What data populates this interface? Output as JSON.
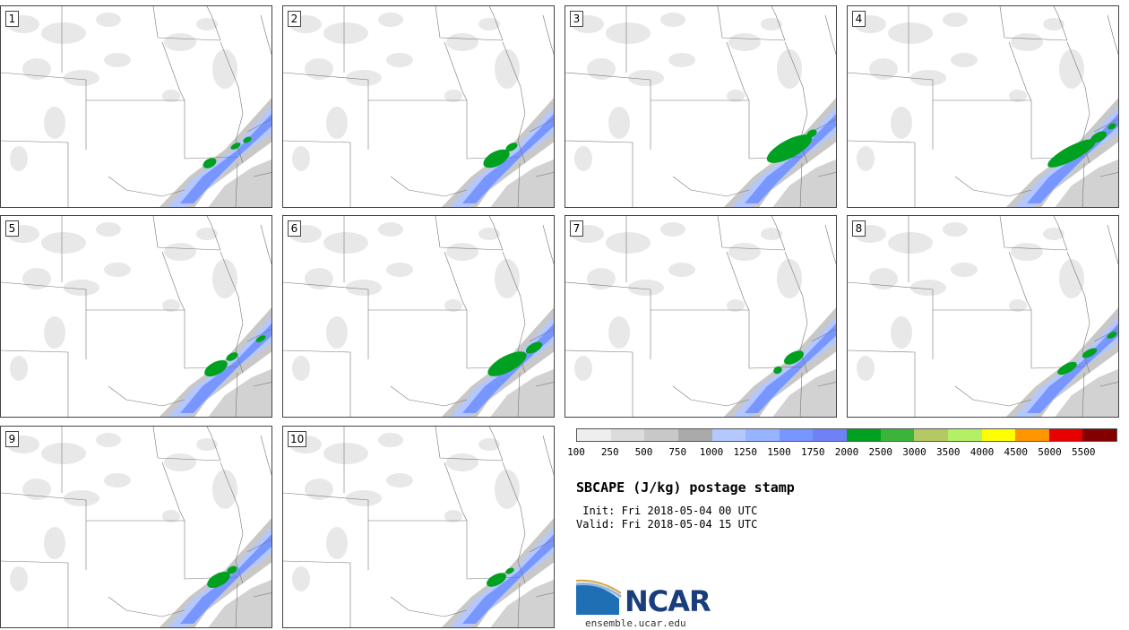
{
  "panels": [
    {
      "label": "1"
    },
    {
      "label": "2"
    },
    {
      "label": "3"
    },
    {
      "label": "4"
    },
    {
      "label": "5"
    },
    {
      "label": "6"
    },
    {
      "label": "7"
    },
    {
      "label": "8"
    },
    {
      "label": "9"
    },
    {
      "label": "10"
    }
  ],
  "colorbar": {
    "colors": [
      "#eeeeee",
      "#dcdcdc",
      "#c8c8c8",
      "#aaaaaa",
      "#b4c8ff",
      "#96b4ff",
      "#7896ff",
      "#6e82f5",
      "#00a020",
      "#3cb43c",
      "#b4c864",
      "#b4f064",
      "#ffff00",
      "#ff9600",
      "#e60000",
      "#820000"
    ],
    "ticks": [
      "100",
      "250",
      "500",
      "750",
      "1000",
      "1250",
      "1500",
      "1750",
      "2000",
      "2500",
      "3000",
      "3500",
      "4000",
      "4500",
      "5000",
      "5500"
    ]
  },
  "title": "SBCAPE (J/kg) postage stamp",
  "init": " Init: Fri 2018-05-04 00 UTC",
  "valid": "Valid: Fri 2018-05-04 15 UTC",
  "logo": {
    "name": "NCAR",
    "url": "ensemble.ucar.edu"
  }
}
